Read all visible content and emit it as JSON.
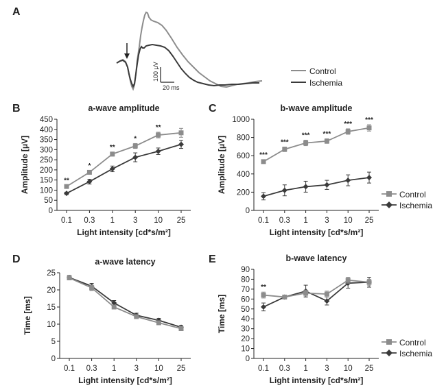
{
  "panel_labels": {
    "a": "A",
    "b": "B",
    "c": "C",
    "d": "D",
    "e": "E"
  },
  "trace_legend": {
    "control": "Control",
    "ischemia": "Ischemia"
  },
  "scale_bar": {
    "v": "100 μV",
    "t": "20 ms"
  },
  "legend_c": {
    "control": "Control",
    "ischemia": "Ischemia"
  },
  "legend_e": {
    "control": "Control",
    "ischemia": "Ischemia"
  },
  "colors": {
    "control": "#8c8c8c",
    "ischemia": "#3a3a3a"
  },
  "chart_data": [
    {
      "id": "B",
      "type": "line",
      "title": "a-wave amplitude",
      "xlabel": "Light intensity [cd*s/m²]",
      "ylabel": "Amplitude [μV]",
      "categories": [
        "0.1",
        "0.3",
        "1",
        "3",
        "10",
        "25"
      ],
      "ylim": [
        0,
        450
      ],
      "yticks": [
        0,
        50,
        100,
        150,
        200,
        250,
        300,
        350,
        400,
        450
      ],
      "series": [
        {
          "name": "Control",
          "values": [
            118,
            188,
            278,
            318,
            372,
            383
          ],
          "errors": [
            6,
            8,
            10,
            12,
            14,
            22
          ]
        },
        {
          "name": "Ischemia",
          "values": [
            84,
            142,
            205,
            262,
            292,
            326
          ],
          "errors": [
            6,
            12,
            14,
            22,
            16,
            20
          ]
        }
      ],
      "stars": [
        "**",
        "*",
        "**",
        "*",
        "**",
        ""
      ]
    },
    {
      "id": "C",
      "type": "line",
      "title": "b-wave amplitude",
      "xlabel": "Light intensity [cd*s/m²]",
      "ylabel": "Amplitude [μV]",
      "categories": [
        "0.1",
        "0.3",
        "1",
        "3",
        "10",
        "25"
      ],
      "ylim": [
        0,
        1000
      ],
      "yticks": [
        0,
        200,
        400,
        600,
        800,
        1000
      ],
      "series": [
        {
          "name": "Control",
          "values": [
            535,
            670,
            740,
            760,
            865,
            905
          ],
          "errors": [
            20,
            25,
            30,
            25,
            30,
            35
          ]
        },
        {
          "name": "Ischemia",
          "values": [
            155,
            220,
            260,
            280,
            330,
            360
          ],
          "errors": [
            40,
            60,
            60,
            50,
            60,
            60
          ]
        }
      ],
      "stars": [
        "***",
        "***",
        "***",
        "***",
        "***",
        "***"
      ],
      "legend": "right"
    },
    {
      "id": "D",
      "type": "line",
      "title": "a-wave latency",
      "xlabel": "Light intensity [cd*s/m²]",
      "ylabel": "Time [ms]",
      "categories": [
        "0.1",
        "0.3",
        "1",
        "3",
        "10",
        "25"
      ],
      "ylim": [
        0,
        25
      ],
      "yticks": [
        0,
        5,
        10,
        15,
        20,
        25
      ],
      "series": [
        {
          "name": "Control",
          "values": [
            23.5,
            20.6,
            15.0,
            12.2,
            10.4,
            8.7
          ],
          "errors": [
            0.6,
            0.8,
            0.6,
            0.5,
            0.5,
            0.4
          ]
        },
        {
          "name": "Ischemia",
          "values": [
            23.6,
            21.1,
            16.2,
            12.6,
            11.1,
            9.1
          ],
          "errors": [
            0.6,
            0.8,
            0.7,
            0.6,
            0.6,
            0.5
          ]
        }
      ],
      "stars": [
        "",
        "",
        "",
        "",
        "",
        ""
      ]
    },
    {
      "id": "E",
      "type": "line",
      "title": "b-wave latency",
      "xlabel": "Light intensity [cd*s/m²]",
      "ylabel": "Time [ms]",
      "categories": [
        "0.1",
        "0.3",
        "1",
        "3",
        "10",
        "25"
      ],
      "ylim": [
        0,
        90
      ],
      "yticks": [
        0,
        10,
        20,
        30,
        40,
        50,
        60,
        70,
        80,
        90
      ],
      "series": [
        {
          "name": "Control",
          "values": [
            64,
            62,
            66,
            65,
            79,
            77
          ],
          "errors": [
            3,
            2,
            3,
            3,
            3,
            3
          ]
        },
        {
          "name": "Ischemia",
          "values": [
            52,
            62,
            68,
            58,
            76,
            77
          ],
          "errors": [
            4,
            2,
            6,
            4,
            5,
            5
          ]
        }
      ],
      "stars": [
        "**",
        "",
        "",
        "",
        "",
        ""
      ],
      "legend": "right"
    }
  ]
}
